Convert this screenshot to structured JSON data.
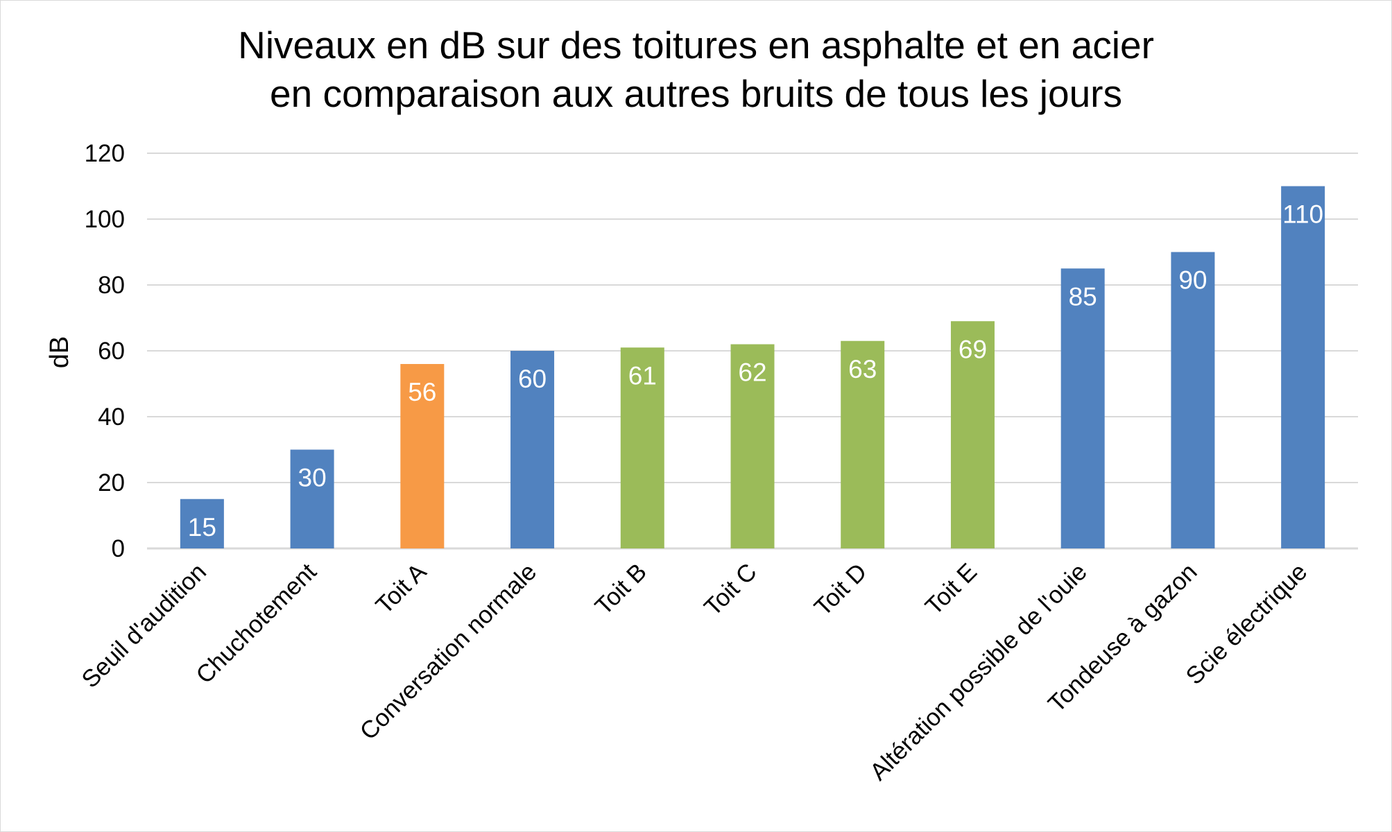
{
  "chart_data": {
    "type": "bar",
    "title_lines": [
      "Niveaux en dB sur des toitures en asphalte et en acier",
      "en comparaison aux autres bruits de tous les jours"
    ],
    "xlabel": "",
    "ylabel": "dB",
    "ylim": [
      0,
      120
    ],
    "yticks": [
      0,
      20,
      40,
      60,
      80,
      100,
      120
    ],
    "grid": true,
    "categories": [
      "Seuil d'audition",
      "Chuchotement",
      "Toit A",
      "Conversation normale",
      "Toit B",
      "Toit C",
      "Toit D",
      "Toit E",
      "Altération possible de l'ouie",
      "Tondeuse à gazon",
      "Scie électrique"
    ],
    "values": [
      15,
      30,
      56,
      60,
      61,
      62,
      63,
      69,
      85,
      90,
      110
    ],
    "colors": [
      "#5182bf",
      "#5182bf",
      "#f79a46",
      "#5182bf",
      "#9bbb59",
      "#9bbb59",
      "#9bbb59",
      "#9bbb59",
      "#5182bf",
      "#5182bf",
      "#5182bf"
    ],
    "data_labels": true
  },
  "style": {
    "grid_color": "#d9d9d9",
    "label_color": "#ffffff"
  }
}
